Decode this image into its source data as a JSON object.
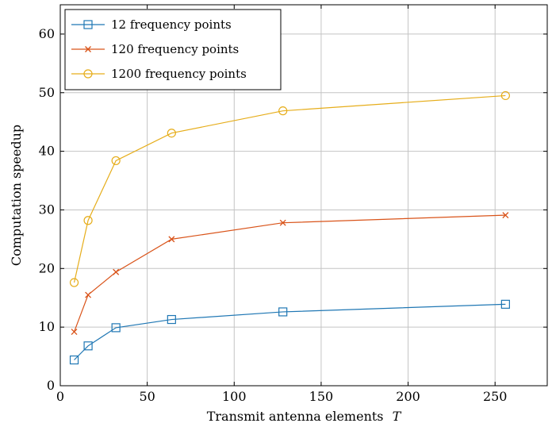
{
  "chart_data": {
    "type": "line",
    "xlabel": "Transmit antenna elements",
    "xlabel_symbol": "T",
    "ylabel": "Computation speedup",
    "xlim": [
      0,
      280
    ],
    "ylim": [
      0,
      65
    ],
    "xticks": [
      0,
      50,
      100,
      150,
      200,
      250
    ],
    "yticks": [
      0,
      10,
      20,
      30,
      40,
      50,
      60
    ],
    "grid": true,
    "legend": "top-left",
    "series": [
      {
        "name": "12 frequency points",
        "color": "#1f77b4",
        "marker": "square",
        "x": [
          8,
          16,
          32,
          64,
          128,
          256
        ],
        "y": [
          4.4,
          6.8,
          9.9,
          11.3,
          12.6,
          13.9
        ]
      },
      {
        "name": "120 frequency points",
        "color": "#d95319",
        "marker": "x",
        "x": [
          8,
          16,
          32,
          64,
          128,
          256
        ],
        "y": [
          9.2,
          15.5,
          19.4,
          25.0,
          27.8,
          29.1
        ]
      },
      {
        "name": "1200 frequency points",
        "color": "#e6ad1a",
        "marker": "circle",
        "x": [
          8,
          16,
          32,
          64,
          128,
          256
        ],
        "y": [
          17.6,
          28.2,
          38.4,
          43.1,
          46.9,
          49.5
        ]
      }
    ]
  }
}
